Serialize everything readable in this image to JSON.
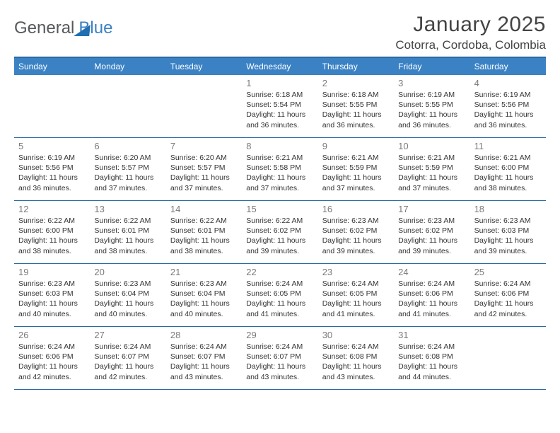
{
  "brand": {
    "part1": "General",
    "part2": "Blue"
  },
  "header": {
    "title": "January 2025",
    "location": "Cotorra, Cordoba, Colombia"
  },
  "colors": {
    "header_bg": "#3b82c4",
    "header_text": "#ffffff",
    "row_divider": "#2b6aa3",
    "daynum": "#7a7a7a",
    "body_text": "#333333",
    "brand_gray": "#56595c",
    "brand_blue": "#3b82c4",
    "page_bg": "#ffffff"
  },
  "dow": [
    "Sunday",
    "Monday",
    "Tuesday",
    "Wednesday",
    "Thursday",
    "Friday",
    "Saturday"
  ],
  "weeks": [
    [
      {
        "n": "",
        "sr": "",
        "ss": "",
        "dl": ""
      },
      {
        "n": "",
        "sr": "",
        "ss": "",
        "dl": ""
      },
      {
        "n": "",
        "sr": "",
        "ss": "",
        "dl": ""
      },
      {
        "n": "1",
        "sr": "Sunrise: 6:18 AM",
        "ss": "Sunset: 5:54 PM",
        "dl": "Daylight: 11 hours and 36 minutes."
      },
      {
        "n": "2",
        "sr": "Sunrise: 6:18 AM",
        "ss": "Sunset: 5:55 PM",
        "dl": "Daylight: 11 hours and 36 minutes."
      },
      {
        "n": "3",
        "sr": "Sunrise: 6:19 AM",
        "ss": "Sunset: 5:55 PM",
        "dl": "Daylight: 11 hours and 36 minutes."
      },
      {
        "n": "4",
        "sr": "Sunrise: 6:19 AM",
        "ss": "Sunset: 5:56 PM",
        "dl": "Daylight: 11 hours and 36 minutes."
      }
    ],
    [
      {
        "n": "5",
        "sr": "Sunrise: 6:19 AM",
        "ss": "Sunset: 5:56 PM",
        "dl": "Daylight: 11 hours and 36 minutes."
      },
      {
        "n": "6",
        "sr": "Sunrise: 6:20 AM",
        "ss": "Sunset: 5:57 PM",
        "dl": "Daylight: 11 hours and 37 minutes."
      },
      {
        "n": "7",
        "sr": "Sunrise: 6:20 AM",
        "ss": "Sunset: 5:57 PM",
        "dl": "Daylight: 11 hours and 37 minutes."
      },
      {
        "n": "8",
        "sr": "Sunrise: 6:21 AM",
        "ss": "Sunset: 5:58 PM",
        "dl": "Daylight: 11 hours and 37 minutes."
      },
      {
        "n": "9",
        "sr": "Sunrise: 6:21 AM",
        "ss": "Sunset: 5:59 PM",
        "dl": "Daylight: 11 hours and 37 minutes."
      },
      {
        "n": "10",
        "sr": "Sunrise: 6:21 AM",
        "ss": "Sunset: 5:59 PM",
        "dl": "Daylight: 11 hours and 37 minutes."
      },
      {
        "n": "11",
        "sr": "Sunrise: 6:21 AM",
        "ss": "Sunset: 6:00 PM",
        "dl": "Daylight: 11 hours and 38 minutes."
      }
    ],
    [
      {
        "n": "12",
        "sr": "Sunrise: 6:22 AM",
        "ss": "Sunset: 6:00 PM",
        "dl": "Daylight: 11 hours and 38 minutes."
      },
      {
        "n": "13",
        "sr": "Sunrise: 6:22 AM",
        "ss": "Sunset: 6:01 PM",
        "dl": "Daylight: 11 hours and 38 minutes."
      },
      {
        "n": "14",
        "sr": "Sunrise: 6:22 AM",
        "ss": "Sunset: 6:01 PM",
        "dl": "Daylight: 11 hours and 38 minutes."
      },
      {
        "n": "15",
        "sr": "Sunrise: 6:22 AM",
        "ss": "Sunset: 6:02 PM",
        "dl": "Daylight: 11 hours and 39 minutes."
      },
      {
        "n": "16",
        "sr": "Sunrise: 6:23 AM",
        "ss": "Sunset: 6:02 PM",
        "dl": "Daylight: 11 hours and 39 minutes."
      },
      {
        "n": "17",
        "sr": "Sunrise: 6:23 AM",
        "ss": "Sunset: 6:02 PM",
        "dl": "Daylight: 11 hours and 39 minutes."
      },
      {
        "n": "18",
        "sr": "Sunrise: 6:23 AM",
        "ss": "Sunset: 6:03 PM",
        "dl": "Daylight: 11 hours and 39 minutes."
      }
    ],
    [
      {
        "n": "19",
        "sr": "Sunrise: 6:23 AM",
        "ss": "Sunset: 6:03 PM",
        "dl": "Daylight: 11 hours and 40 minutes."
      },
      {
        "n": "20",
        "sr": "Sunrise: 6:23 AM",
        "ss": "Sunset: 6:04 PM",
        "dl": "Daylight: 11 hours and 40 minutes."
      },
      {
        "n": "21",
        "sr": "Sunrise: 6:23 AM",
        "ss": "Sunset: 6:04 PM",
        "dl": "Daylight: 11 hours and 40 minutes."
      },
      {
        "n": "22",
        "sr": "Sunrise: 6:24 AM",
        "ss": "Sunset: 6:05 PM",
        "dl": "Daylight: 11 hours and 41 minutes."
      },
      {
        "n": "23",
        "sr": "Sunrise: 6:24 AM",
        "ss": "Sunset: 6:05 PM",
        "dl": "Daylight: 11 hours and 41 minutes."
      },
      {
        "n": "24",
        "sr": "Sunrise: 6:24 AM",
        "ss": "Sunset: 6:06 PM",
        "dl": "Daylight: 11 hours and 41 minutes."
      },
      {
        "n": "25",
        "sr": "Sunrise: 6:24 AM",
        "ss": "Sunset: 6:06 PM",
        "dl": "Daylight: 11 hours and 42 minutes."
      }
    ],
    [
      {
        "n": "26",
        "sr": "Sunrise: 6:24 AM",
        "ss": "Sunset: 6:06 PM",
        "dl": "Daylight: 11 hours and 42 minutes."
      },
      {
        "n": "27",
        "sr": "Sunrise: 6:24 AM",
        "ss": "Sunset: 6:07 PM",
        "dl": "Daylight: 11 hours and 42 minutes."
      },
      {
        "n": "28",
        "sr": "Sunrise: 6:24 AM",
        "ss": "Sunset: 6:07 PM",
        "dl": "Daylight: 11 hours and 43 minutes."
      },
      {
        "n": "29",
        "sr": "Sunrise: 6:24 AM",
        "ss": "Sunset: 6:07 PM",
        "dl": "Daylight: 11 hours and 43 minutes."
      },
      {
        "n": "30",
        "sr": "Sunrise: 6:24 AM",
        "ss": "Sunset: 6:08 PM",
        "dl": "Daylight: 11 hours and 43 minutes."
      },
      {
        "n": "31",
        "sr": "Sunrise: 6:24 AM",
        "ss": "Sunset: 6:08 PM",
        "dl": "Daylight: 11 hours and 44 minutes."
      },
      {
        "n": "",
        "sr": "",
        "ss": "",
        "dl": ""
      }
    ]
  ]
}
